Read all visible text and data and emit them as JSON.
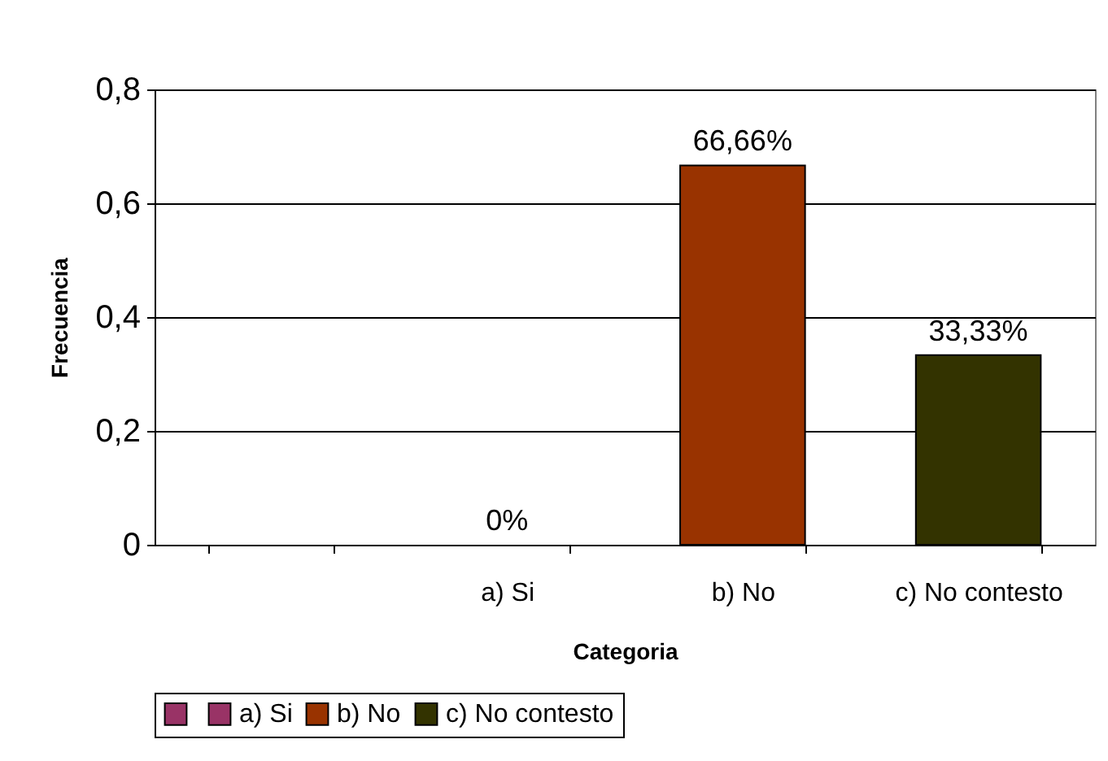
{
  "chart_data": {
    "type": "bar",
    "xlabel": "Categoria",
    "ylabel": "Frecuencia",
    "categories": [
      null,
      "a) Si",
      "b) No",
      "c) No contesto"
    ],
    "series": [
      {
        "color": "#993366",
        "values": [
          null,
          null,
          null,
          null
        ]
      },
      {
        "name": "a) Si",
        "color": "#993366",
        "values": [
          null,
          0,
          null,
          null
        ],
        "value_labels": [
          null,
          "0%",
          null,
          null
        ]
      },
      {
        "name": "b) No",
        "color": "#993300",
        "values": [
          null,
          null,
          0.6666,
          null
        ],
        "value_labels": [
          null,
          null,
          "66,66%",
          null
        ]
      },
      {
        "name": "c) No contesto",
        "color": "#333300",
        "values": [
          null,
          null,
          null,
          0.3333
        ],
        "value_labels": [
          null,
          null,
          null,
          "33,33%"
        ]
      }
    ],
    "ylim": [
      0,
      0.8
    ],
    "yticks": [
      0,
      {
        "value": 0.2,
        "label": "0,2"
      },
      {
        "value": 0.4,
        "label": "0,4"
      },
      {
        "value": 0.6,
        "label": "0,6"
      },
      {
        "value": 0.8,
        "label": "0,8"
      }
    ],
    "grid": "y",
    "legend": "bottom"
  }
}
